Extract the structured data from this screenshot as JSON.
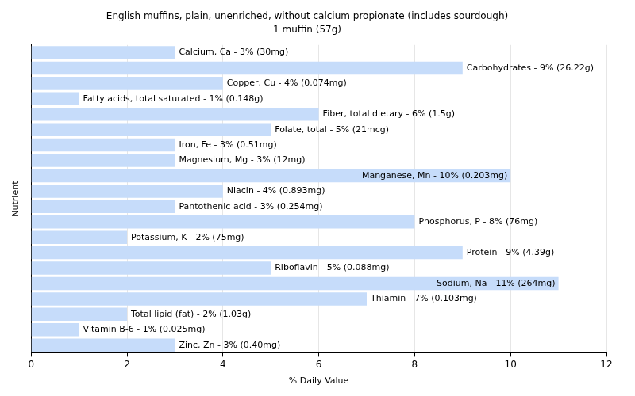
{
  "chart_data": {
    "type": "bar",
    "title": "English muffins, plain, unenriched, without calcium propionate (includes sourdough)",
    "subtitle": "1 muffin (57g)",
    "xlabel": "% Daily Value",
    "ylabel": "Nutrient",
    "orientation": "horizontal",
    "categories": [
      "Calcium, Ca - 3% (30mg)",
      "Carbohydrates - 9% (26.22g)",
      "Copper, Cu - 4% (0.074mg)",
      "Fatty acids, total saturated - 1% (0.148g)",
      "Fiber, total dietary - 6% (1.5g)",
      "Folate, total - 5% (21mcg)",
      "Iron, Fe - 3% (0.51mg)",
      "Magnesium, Mg - 3% (12mg)",
      "Manganese, Mn - 10% (0.203mg)",
      "Niacin - 4% (0.893mg)",
      "Pantothenic acid - 3% (0.254mg)",
      "Phosphorus, P - 8% (76mg)",
      "Potassium, K - 2% (75mg)",
      "Protein - 9% (4.39g)",
      "Riboflavin - 5% (0.088mg)",
      "Sodium, Na - 11% (264mg)",
      "Thiamin - 7% (0.103mg)",
      "Total lipid (fat) - 2% (1.03g)",
      "Vitamin B-6 - 1% (0.025mg)",
      "Zinc, Zn - 3% (0.40mg)"
    ],
    "values": [
      3,
      9,
      4,
      1,
      6,
      5,
      3,
      3,
      10,
      4,
      3,
      8,
      2,
      9,
      5,
      11,
      7,
      2,
      1,
      3
    ],
    "color": "#c6dcfa",
    "xlim": [
      0,
      12
    ],
    "xticks": [
      0,
      2,
      4,
      6,
      8,
      10,
      12
    ],
    "grid": true,
    "tick_labels": "x"
  }
}
